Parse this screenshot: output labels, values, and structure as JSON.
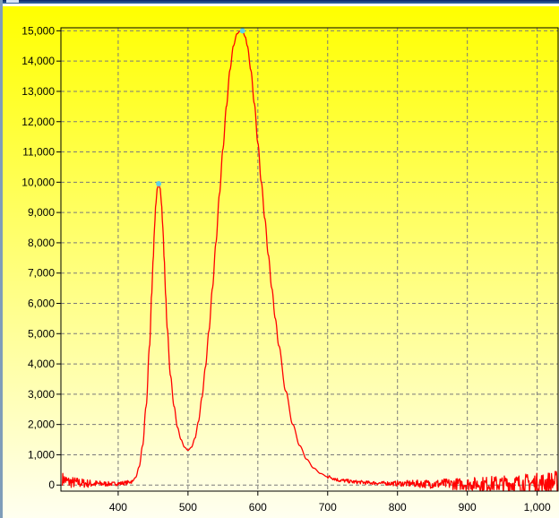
{
  "window": {
    "title": ""
  },
  "chart_data": {
    "type": "line",
    "title": "",
    "xlabel": "",
    "ylabel": "",
    "xlim": [
      318,
      1030
    ],
    "ylim": [
      -200,
      15100
    ],
    "xticks": [
      400,
      500,
      600,
      700,
      800,
      900,
      1000
    ],
    "xtick_labels": [
      "400",
      "500",
      "600",
      "700",
      "800",
      "900",
      "1,000"
    ],
    "yticks": [
      0,
      1000,
      2000,
      3000,
      4000,
      5000,
      6000,
      7000,
      8000,
      9000,
      10000,
      11000,
      12000,
      13000,
      14000,
      15000
    ],
    "ytick_labels": [
      "0",
      "1,000",
      "2,000",
      "3,000",
      "4,000",
      "5,000",
      "6,000",
      "7,000",
      "8,000",
      "9,000",
      "10,000",
      "11,000",
      "12,000",
      "13,000",
      "14,000",
      "15,000"
    ],
    "grid": true,
    "legend": "none",
    "background_gradient": [
      "#ffff00",
      "#fffff0"
    ],
    "series": [
      {
        "color": "#ff0000",
        "x": [
          320,
          330,
          340,
          350,
          360,
          370,
          380,
          390,
          400,
          410,
          420,
          425,
          430,
          435,
          440,
          445,
          448,
          450,
          452,
          454,
          456,
          458,
          460,
          462,
          464,
          466,
          468,
          470,
          475,
          480,
          485,
          490,
          495,
          500,
          505,
          510,
          515,
          520,
          525,
          530,
          535,
          540,
          545,
          550,
          555,
          560,
          565,
          570,
          575,
          578,
          582,
          585,
          590,
          595,
          600,
          605,
          610,
          615,
          620,
          625,
          630,
          640,
          650,
          660,
          670,
          680,
          690,
          700,
          720,
          740,
          760,
          780,
          800,
          850,
          900,
          950,
          1000,
          1030
        ],
        "y": [
          200,
          100,
          80,
          60,
          50,
          40,
          40,
          40,
          50,
          70,
          120,
          250,
          600,
          1300,
          2600,
          4600,
          6300,
          7400,
          8500,
          9300,
          9800,
          9950,
          9800,
          9300,
          8500,
          7400,
          6300,
          5200,
          3600,
          2600,
          1900,
          1500,
          1250,
          1150,
          1250,
          1550,
          2100,
          2900,
          3900,
          5100,
          6500,
          8000,
          9600,
          11100,
          12500,
          13700,
          14500,
          14900,
          15000,
          15000,
          14800,
          14500,
          13700,
          12600,
          11300,
          10000,
          8800,
          7600,
          6500,
          5500,
          4600,
          3100,
          2000,
          1300,
          850,
          560,
          380,
          270,
          150,
          100,
          75,
          60,
          50,
          40,
          35,
          40,
          60,
          100
        ]
      }
    ],
    "peaks": [
      {
        "x": 458,
        "y": 9950
      },
      {
        "x": 578,
        "y": 15000
      }
    ],
    "peak_color": "#5fd3e8"
  }
}
